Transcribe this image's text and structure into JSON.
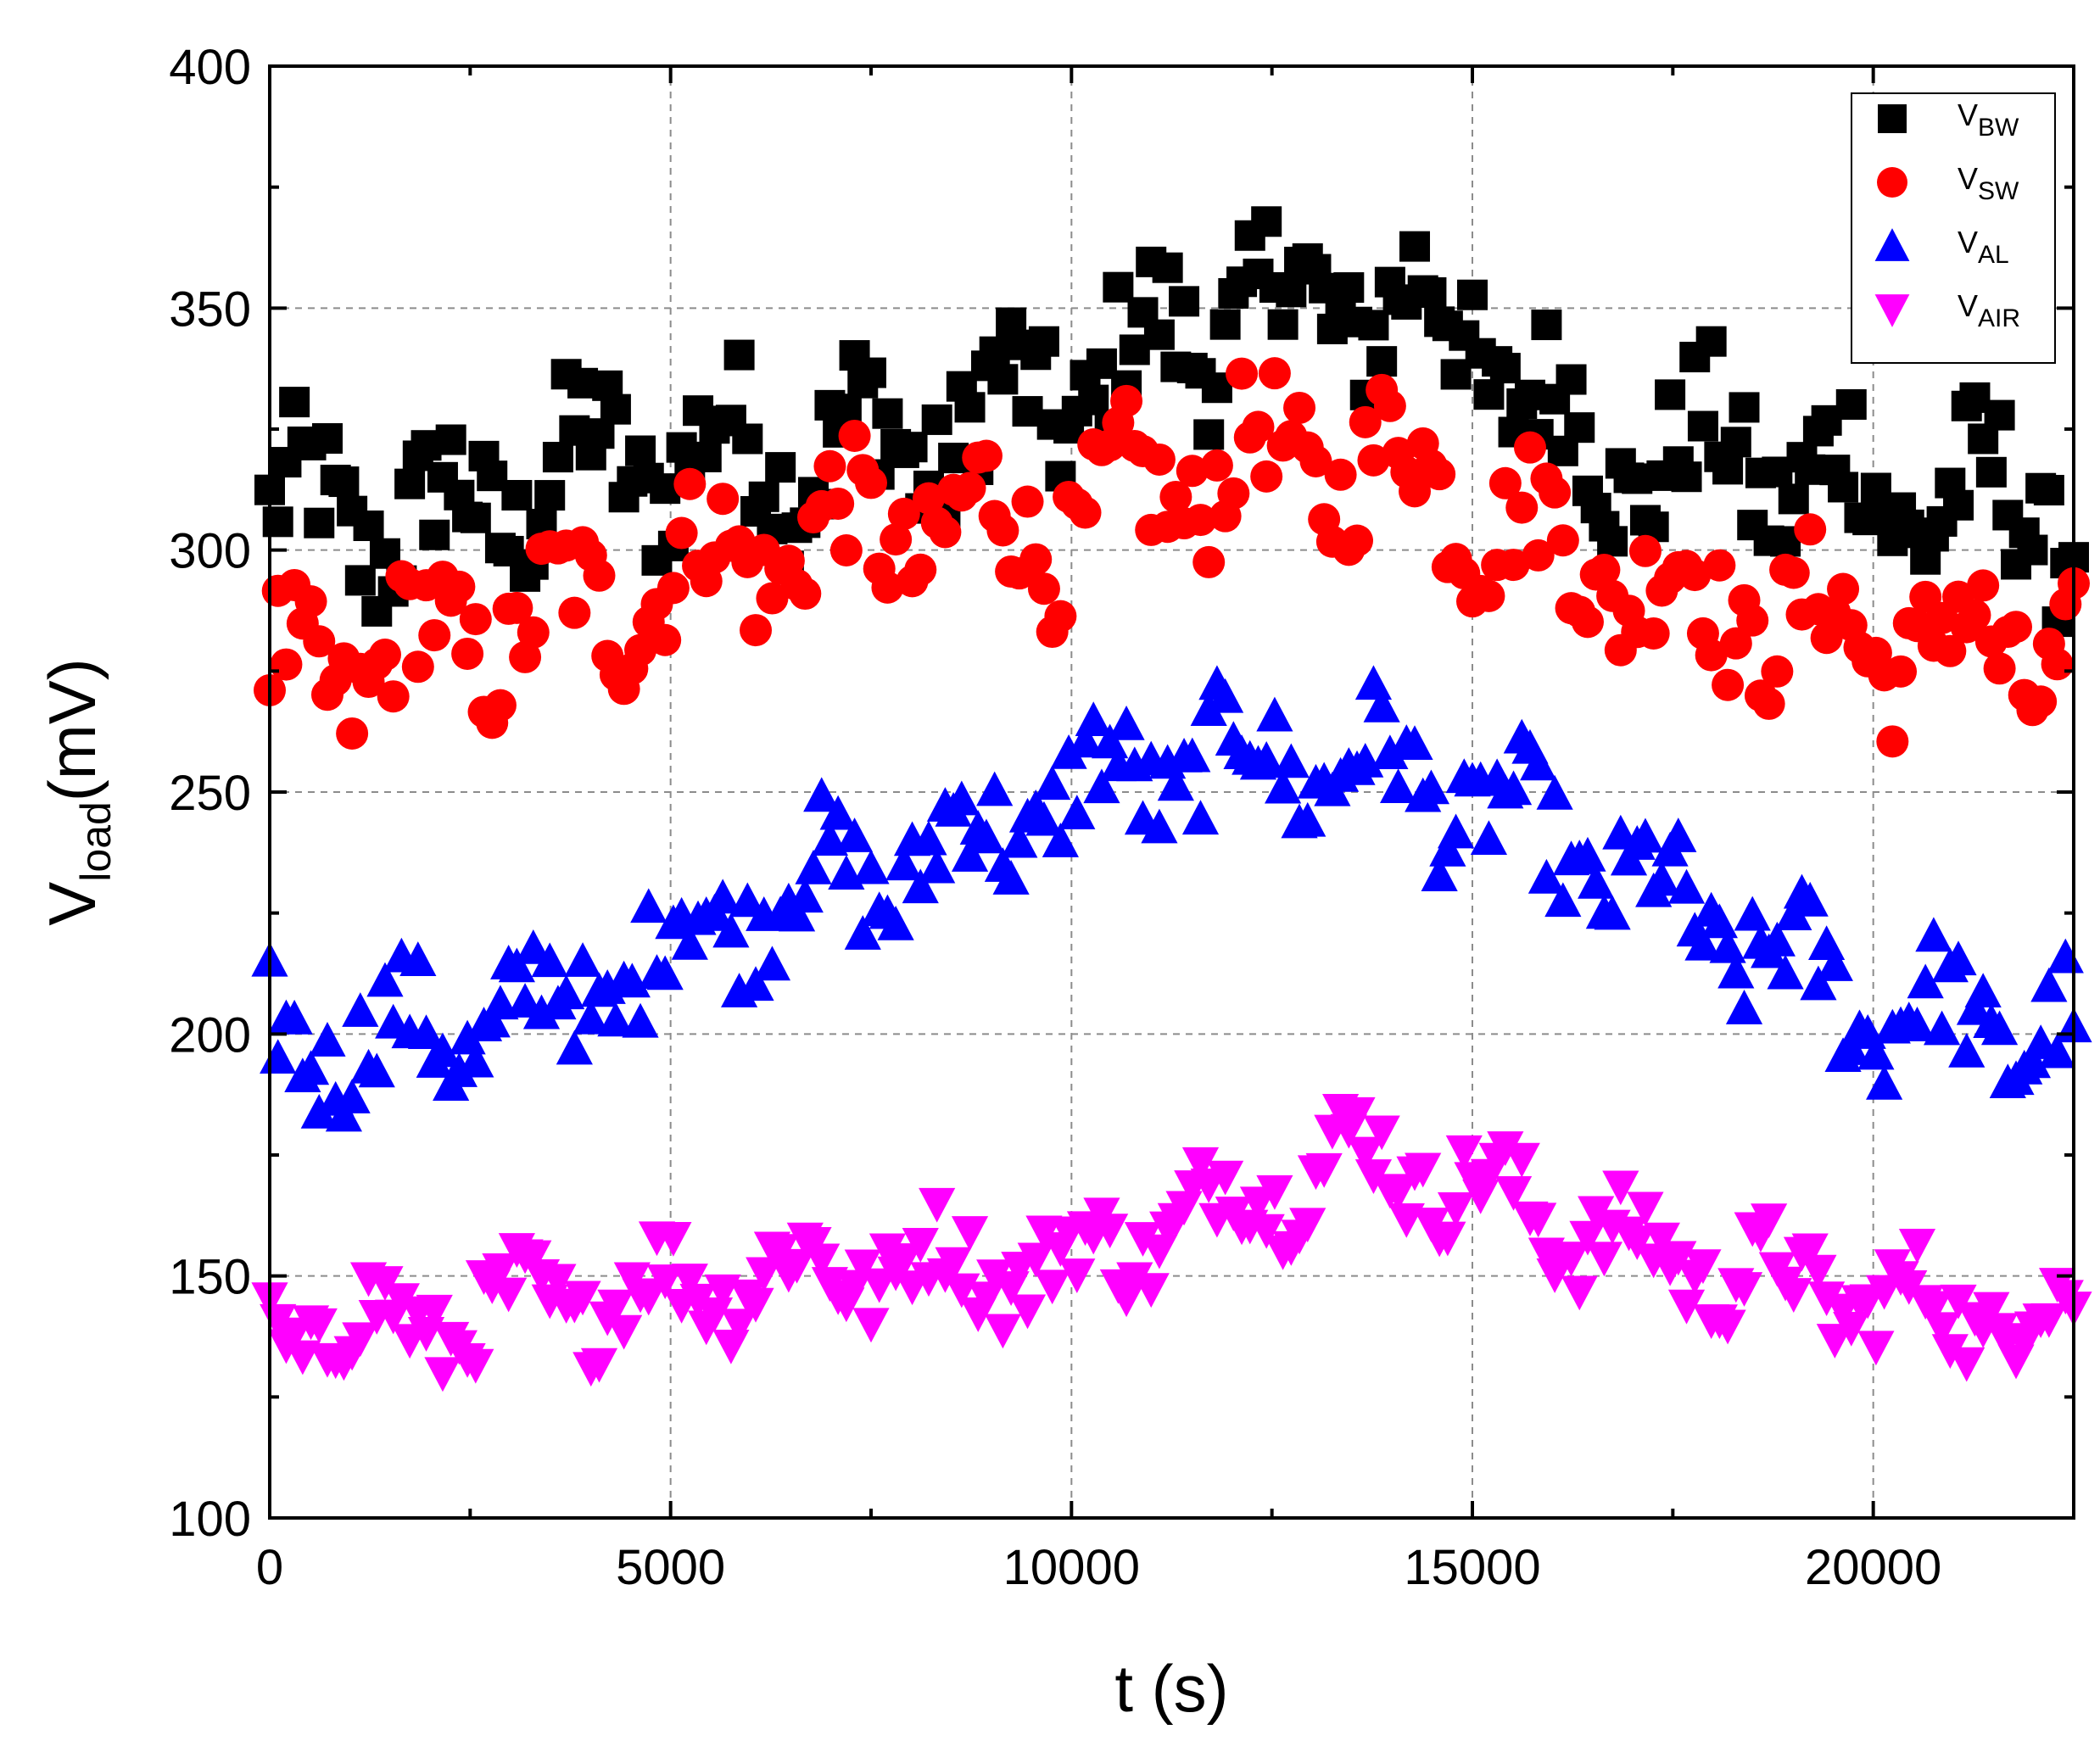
{
  "chart_data": {
    "type": "scatter",
    "title": "",
    "xlabel": "t (s)",
    "ylabel": {
      "base": "V",
      "sub": "load",
      "suffix": "(mV)"
    },
    "xlim": [
      0,
      22500
    ],
    "ylim": [
      100,
      400
    ],
    "xticks": [
      0,
      5000,
      10000,
      15000,
      20000
    ],
    "yticks": [
      100,
      150,
      200,
      250,
      300,
      350,
      400
    ],
    "xtick_labels": [
      "0",
      "5000",
      "10000",
      "15000",
      "20000"
    ],
    "ytick_labels": [
      "100",
      "150",
      "200",
      "250",
      "300",
      "350",
      "400"
    ],
    "grid": true,
    "legend_position": "top-right",
    "series": [
      {
        "name": "V_BW",
        "label_base": "V",
        "label_sub": "BW",
        "marker": "square",
        "color": "#000000",
        "anchors": [
          [
            0,
            308
          ],
          [
            2000,
            305
          ],
          [
            4000,
            318
          ],
          [
            6000,
            320
          ],
          [
            8000,
            322
          ],
          [
            10000,
            333
          ],
          [
            12000,
            350
          ],
          [
            13500,
            352
          ],
          [
            15000,
            345
          ],
          [
            16500,
            318
          ],
          [
            18000,
            320
          ],
          [
            20000,
            312
          ],
          [
            22500,
            308
          ]
        ]
      },
      {
        "name": "V_SW",
        "label_base": "V",
        "label_sub": "SW",
        "marker": "circle",
        "color": "#ff0000",
        "anchors": [
          [
            0,
            272
          ],
          [
            2000,
            280
          ],
          [
            4000,
            288
          ],
          [
            6000,
            300
          ],
          [
            8000,
            305
          ],
          [
            10000,
            305
          ],
          [
            12000,
            318
          ],
          [
            14000,
            318
          ],
          [
            16000,
            300
          ],
          [
            18000,
            288
          ],
          [
            20000,
            282
          ],
          [
            22500,
            278
          ]
        ]
      },
      {
        "name": "V_AL",
        "label_base": "V",
        "label_sub": "AL",
        "marker": "triangle-up",
        "color": "#0000ff",
        "anchors": [
          [
            0,
            198
          ],
          [
            2000,
            200
          ],
          [
            4000,
            208
          ],
          [
            6000,
            228
          ],
          [
            8000,
            235
          ],
          [
            10000,
            250
          ],
          [
            12000,
            258
          ],
          [
            14000,
            255
          ],
          [
            16000,
            240
          ],
          [
            18000,
            222
          ],
          [
            20000,
            205
          ],
          [
            22500,
            200
          ]
        ]
      },
      {
        "name": "V_AIR",
        "label_base": "V",
        "label_sub": "AIR",
        "marker": "triangle-down",
        "color": "#ff00ff",
        "anchors": [
          [
            0,
            138
          ],
          [
            2000,
            140
          ],
          [
            4000,
            145
          ],
          [
            6000,
            150
          ],
          [
            8000,
            152
          ],
          [
            10000,
            152
          ],
          [
            12000,
            165
          ],
          [
            13500,
            175
          ],
          [
            15000,
            168
          ],
          [
            17000,
            155
          ],
          [
            19000,
            148
          ],
          [
            21000,
            142
          ],
          [
            22500,
            142
          ]
        ]
      }
    ],
    "n_points_per_series": 220
  }
}
